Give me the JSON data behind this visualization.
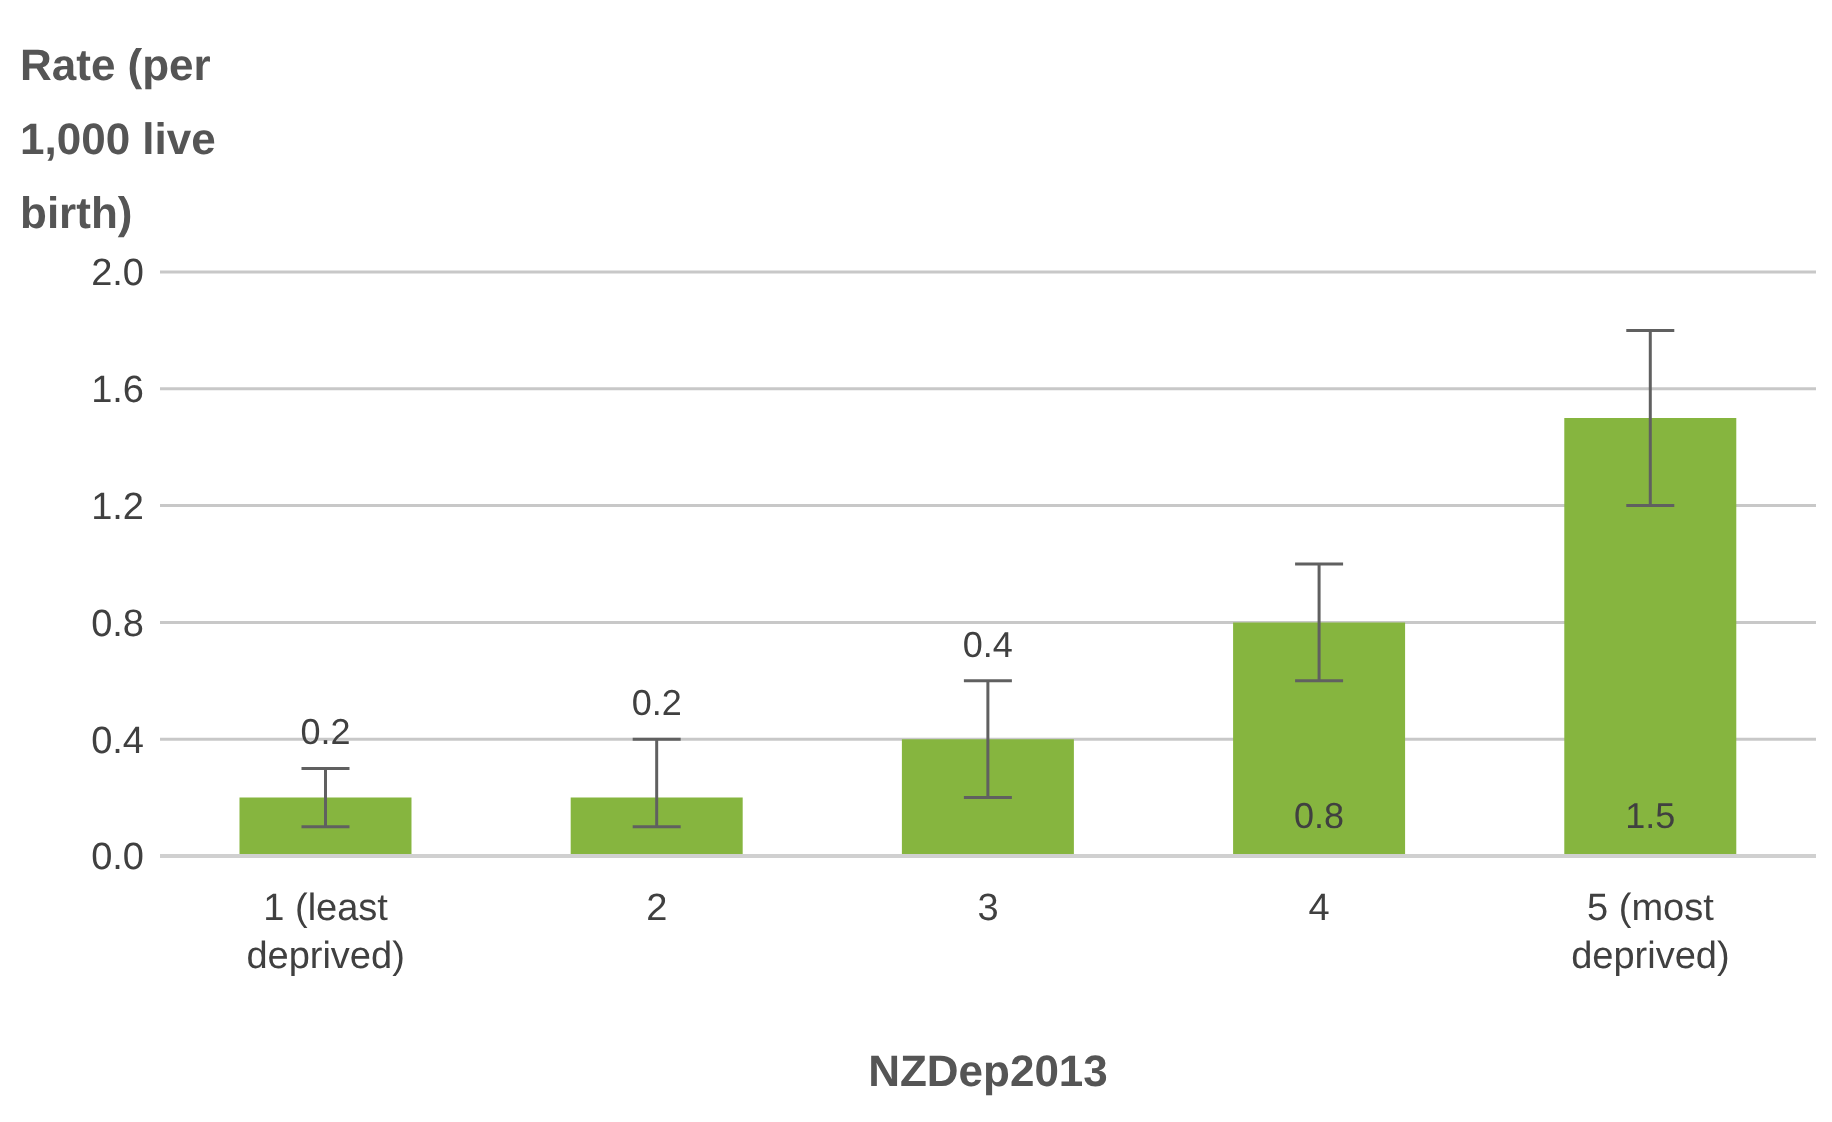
{
  "chart_data": {
    "type": "bar",
    "ylabel": "Rate (per 1,000 live birth)",
    "xlabel": "NZDep2013",
    "categories": [
      "1 (least deprived)",
      "2",
      "3",
      "4",
      "5 (most deprived)"
    ],
    "values": [
      0.2,
      0.2,
      0.4,
      0.8,
      1.5
    ],
    "errors": [
      [
        0.1,
        0.3
      ],
      [
        0.1,
        0.4
      ],
      [
        0.2,
        0.6
      ],
      [
        0.6,
        1.0
      ],
      [
        1.2,
        1.8
      ]
    ],
    "color": "#86b53f",
    "ylim": [
      0,
      2
    ],
    "yticks": [
      {
        "value": 0,
        "label": "0.0"
      },
      {
        "value": 0.4,
        "label": "0.4"
      },
      {
        "value": 0.8,
        "label": "0.8"
      },
      {
        "value": 1.2,
        "label": "1.2"
      },
      {
        "value": 1.6,
        "label": "1.6"
      },
      {
        "value": 2,
        "label": "2.0"
      }
    ],
    "grid": "y",
    "data_labels": true
  }
}
